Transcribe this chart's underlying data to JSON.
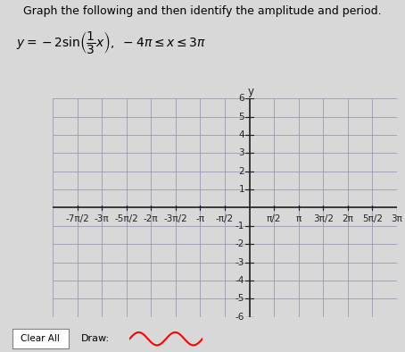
{
  "title": "Graph the following and then identify the amplitude and period.",
  "title_fontsize": 9,
  "eq_fontsize": 10,
  "tick_fontsize": 7.5,
  "background_color": "#d8d8d8",
  "grid_color": "#9999bb",
  "axis_color": "#222222",
  "xmin_pi": -4,
  "xmax_pi": 3,
  "ymin": -6,
  "ymax": 6,
  "x_ticks_pi_halves": [
    -7,
    -6,
    -5,
    -4,
    -3,
    -2,
    -1,
    1,
    2,
    3,
    4,
    5,
    6
  ],
  "x_tick_labels": [
    "-7π/2",
    "-3π",
    "-5π/2",
    "-2π",
    "-3π/2",
    "-π",
    "-π/2",
    "π/2",
    "π",
    "3π/2",
    "2π",
    "5π/2",
    "3π"
  ],
  "y_ticks": [
    -6,
    -5,
    -4,
    -3,
    -2,
    -1,
    1,
    2,
    3,
    4,
    5,
    6
  ],
  "y_tick_labels": [
    "-6",
    "-5",
    "-4",
    "-3",
    "-2",
    "-1",
    "1",
    "2",
    "3",
    "4",
    "5",
    "6"
  ]
}
